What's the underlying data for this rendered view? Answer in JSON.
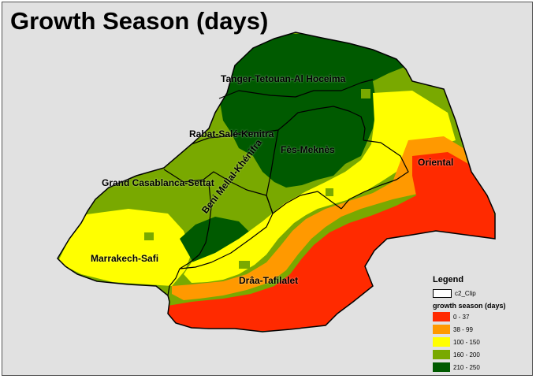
{
  "title": "Growth Season (days)",
  "regions": [
    {
      "name": "Tanger-Tetouan-Al Hoceima"
    },
    {
      "name": "Rabat-Salé-Kenitra"
    },
    {
      "name": "Fès-Meknès"
    },
    {
      "name": "Oriental"
    },
    {
      "name": "Grand Casablanca-Settat"
    },
    {
      "name": "Beni Mellal-Khénifra"
    },
    {
      "name": "Marrakech-Safi"
    },
    {
      "name": "Drâa-Tafilalet"
    }
  ],
  "legend": {
    "title": "Legend",
    "boundary_label": "c2_Clip",
    "subtitle": "growth season (days)",
    "classes": [
      {
        "label": "0 - 37",
        "color": "#ff2a00"
      },
      {
        "label": "38 - 99",
        "color": "#ff9900"
      },
      {
        "label": "100 - 150",
        "color": "#ffff00"
      },
      {
        "label": "160 - 200",
        "color": "#79a900"
      },
      {
        "label": "210 - 250",
        "color": "#005a00"
      }
    ]
  }
}
